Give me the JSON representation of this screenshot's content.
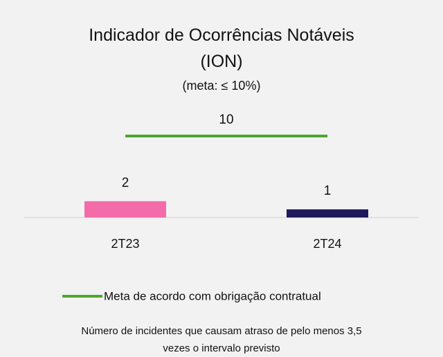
{
  "chart_data": {
    "type": "bar",
    "title": "Indicador de Ocorrências Notáveis (ION)",
    "subtitle": "(meta: ≤ 10%)",
    "categories": [
      "2T23",
      "2T24"
    ],
    "series": [
      {
        "values": [
          2,
          1
        ],
        "colors": [
          "#f36ba8",
          "#1e1a5c"
        ]
      },
      {
        "type": "line",
        "name": "Meta de acordo com obrigação contratual",
        "color": "#4fa72f",
        "values": [
          10,
          10
        ]
      }
    ],
    "note": "Número de incidentes que causam atraso de pelo menos 3,5 vezes o intervalo previsto"
  }
}
